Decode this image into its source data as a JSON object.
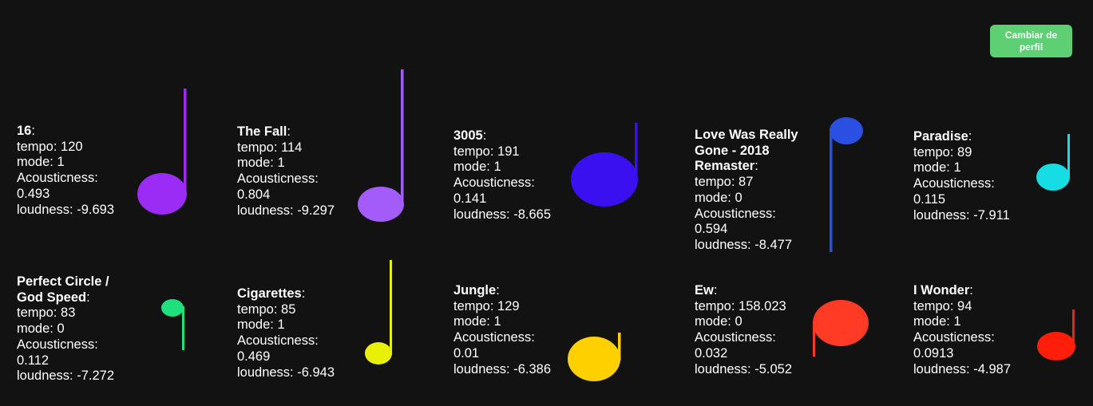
{
  "header": {
    "profile_button_label": "Cambiar de perfil",
    "accent_color": "#5fcf73"
  },
  "labels": {
    "tempo": "tempo: ",
    "mode": "mode: ",
    "acousticness": "Acousticness:",
    "loudness": "loudness: "
  },
  "songs": [
    {
      "title": "16",
      "tempo": "120",
      "mode": "1",
      "acousticness": "0.493",
      "loudness": "-9.693",
      "note_color": "#9b2cf5",
      "note_icon": "music-note-icon"
    },
    {
      "title": "The Fall",
      "tempo": "114",
      "mode": "1",
      "acousticness": "0.804",
      "loudness": "-9.297",
      "note_color": "#a35cf9",
      "note_icon": "music-note-icon"
    },
    {
      "title": "3005",
      "tempo": "191",
      "mode": "1",
      "acousticness": "0.141",
      "loudness": "-8.665",
      "note_color": "#3a0ff0",
      "note_icon": "music-note-icon"
    },
    {
      "title": "Love Was Really Gone - 2018 Remaster",
      "tempo": "87",
      "mode": "0",
      "acousticness": "0.594",
      "loudness": "-8.477",
      "note_color": "#2c4fe3",
      "note_icon": "music-note-icon"
    },
    {
      "title": "Paradise",
      "tempo": "89",
      "mode": "1",
      "acousticness": "0.115",
      "loudness": "-7.911",
      "note_color": "#16dde3",
      "note_icon": "music-note-icon"
    },
    {
      "title": "Perfect Circle / God Speed",
      "tempo": "83",
      "mode": "0",
      "acousticness": "0.112",
      "loudness": "-7.272",
      "note_color": "#1ee07c",
      "note_icon": "music-note-icon"
    },
    {
      "title": "Cigarettes",
      "tempo": "85",
      "mode": "1",
      "acousticness": "0.469",
      "loudness": "-6.943",
      "note_color": "#e8f008",
      "note_icon": "music-note-icon"
    },
    {
      "title": "Jungle",
      "tempo": "129",
      "mode": "1",
      "acousticness": "0.01",
      "loudness": "-6.386",
      "note_color": "#ffd000",
      "note_icon": "music-note-icon"
    },
    {
      "title": "Ew",
      "tempo": "158.023",
      "mode": "0",
      "acousticness": "0.032",
      "loudness": "-5.052",
      "note_color": "#ff3b26",
      "note_icon": "music-note-icon"
    },
    {
      "title": "I Wonder",
      "tempo": "94",
      "mode": "1",
      "acousticness": "0.0913",
      "loudness": "-4.987",
      "note_color": "#ff1e0a",
      "note_icon": "music-note-icon"
    }
  ]
}
